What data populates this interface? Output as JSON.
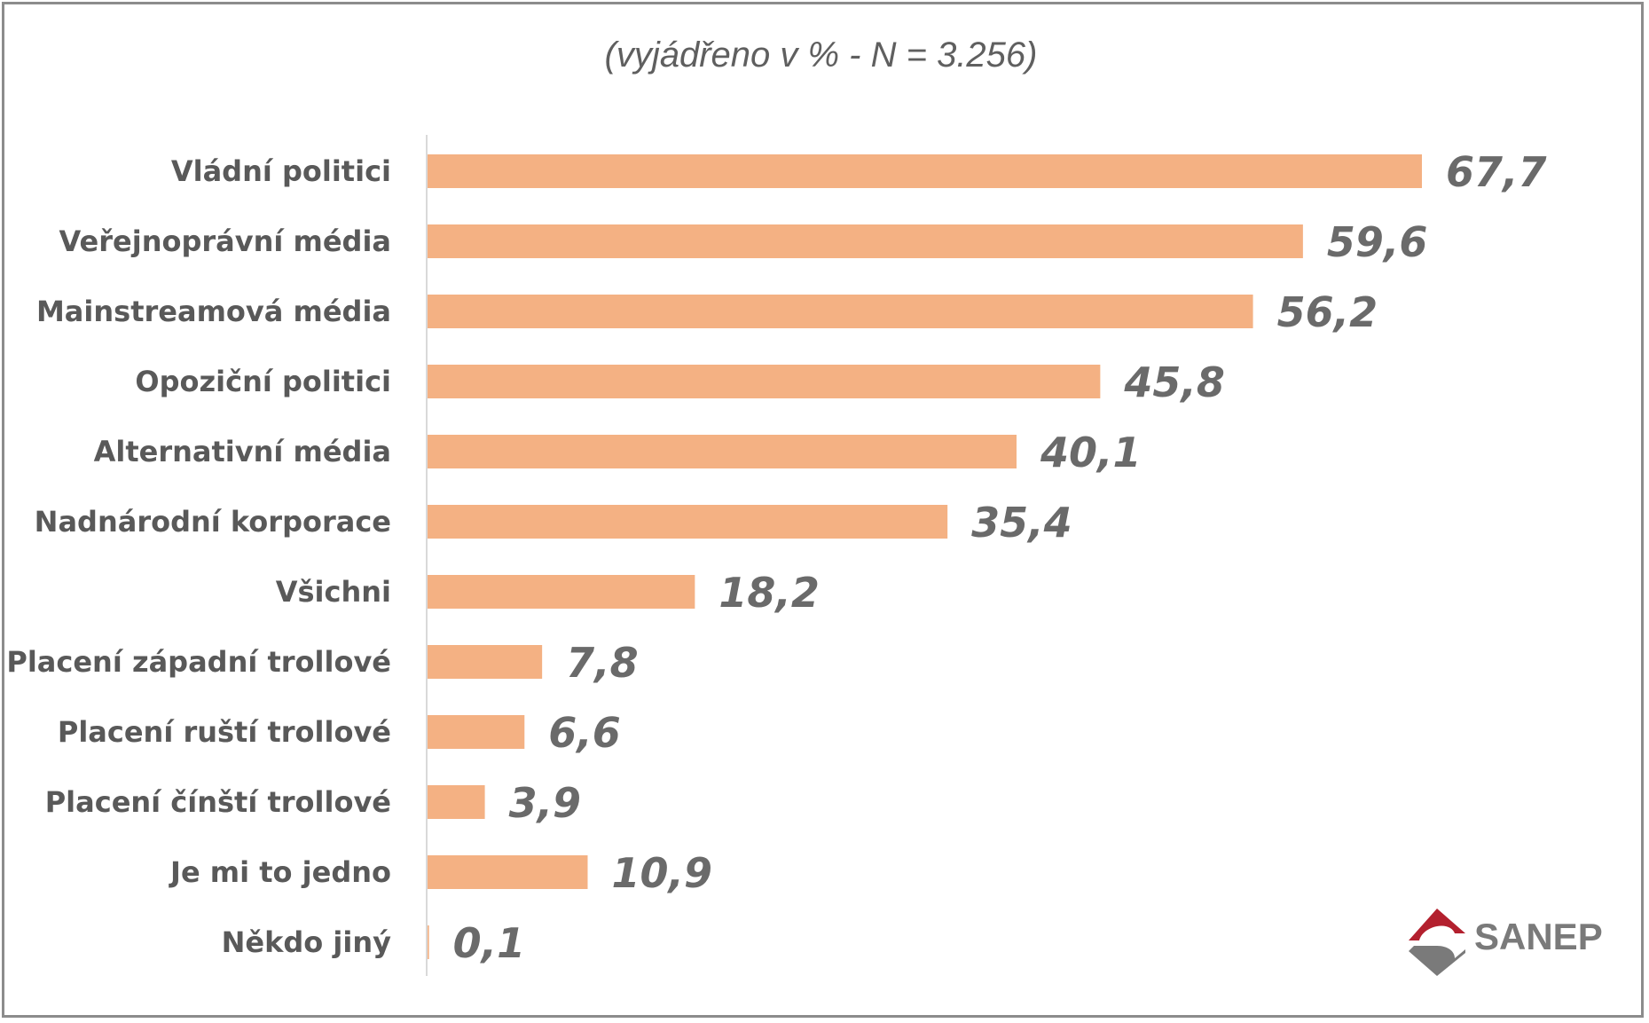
{
  "colors": {
    "bar": "#f4b183",
    "category_text": "#595959",
    "value_text": "#6a6a6a",
    "axis": "#d9d9d9",
    "frame": "#8c8c8c",
    "logo_red": "#b3202e",
    "logo_gray": "#7a7a7a"
  },
  "subtitle": "(vyjádřeno v % - N = 3.256)",
  "logo": {
    "text": "SANEP",
    "icon": "sanep-logo-icon"
  },
  "chart_data": {
    "type": "bar",
    "orientation": "horizontal",
    "categories": [
      "Vládní politici",
      "Veřejnoprávní média",
      "Mainstreamová média",
      "Opoziční politici",
      "Alternativní média",
      "Nadnárodní korporace",
      "Všichni",
      "Placení západní trollové",
      "Placení ruští trollové",
      "Placení čínští trollové",
      "Je mi to jedno",
      "Někdo jiný"
    ],
    "values": [
      67.7,
      59.6,
      56.2,
      45.8,
      40.1,
      35.4,
      18.2,
      7.8,
      6.6,
      3.9,
      10.9,
      0.1
    ],
    "value_labels": [
      "67,7",
      "59,6",
      "56,2",
      "45,8",
      "40,1",
      "35,4",
      "18,2",
      "7,8",
      "6,6",
      "3,9",
      "10,9",
      "0,1"
    ],
    "xlim": [
      0,
      67.7
    ],
    "grid": false,
    "legend": "none"
  }
}
